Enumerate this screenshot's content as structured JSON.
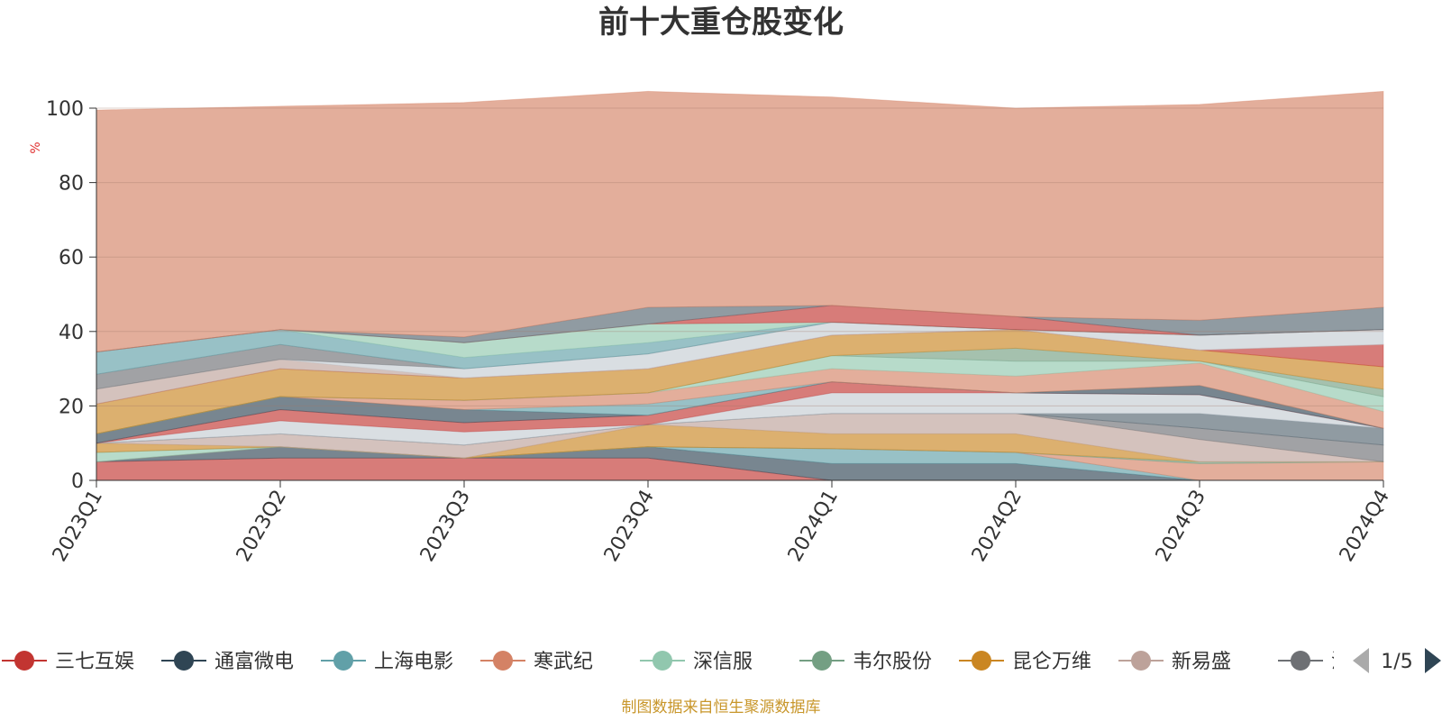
{
  "chart_data": {
    "type": "area",
    "title": "前十大重仓股变化",
    "ylabel": "%",
    "ylim": [
      0,
      100
    ],
    "yticks": [
      0,
      20,
      40,
      60,
      80,
      100
    ],
    "categories": [
      "2023Q1",
      "2023Q2",
      "2023Q3",
      "2023Q4",
      "2024Q1",
      "2024Q2",
      "2024Q3",
      "2024Q4"
    ],
    "stacked": true,
    "grid": true,
    "legend_position": "bottom",
    "legend_page": "1/5",
    "series": [
      {
        "name": "三七互娱",
        "color": "#c23531",
        "values": [
          5,
          6,
          6,
          6,
          0,
          0,
          0,
          0
        ]
      },
      {
        "name": "通富微电",
        "color": "#2f4554",
        "values": [
          0,
          3,
          0,
          3,
          4.5,
          4.5,
          0,
          0
        ]
      },
      {
        "name": "上海电影",
        "color": "#61a0a8",
        "values": [
          0,
          0,
          0,
          0,
          4,
          3,
          0,
          0
        ]
      },
      {
        "name": "寒武纪",
        "color": "#d48265",
        "values": [
          0,
          0,
          0,
          0,
          0,
          0,
          4.5,
          5
        ]
      },
      {
        "name": "深信服",
        "color": "#91c7ae",
        "values": [
          2.5,
          0,
          0,
          0,
          0,
          0,
          0,
          0
        ]
      },
      {
        "name": "韦尔股份",
        "color": "#749f83",
        "values": [
          0,
          0,
          0,
          0,
          0,
          0,
          0.5,
          0
        ]
      },
      {
        "name": "昆仑万维",
        "color": "#ca8622",
        "values": [
          2.5,
          0,
          0,
          6,
          4,
          5,
          0,
          0
        ]
      },
      {
        "name": "新易盛",
        "color": "#bda29a",
        "values": [
          0,
          3.5,
          3.5,
          0,
          5.5,
          5.5,
          6,
          0
        ]
      },
      {
        "name": "沪电股份",
        "color": "#6e7074",
        "values": [
          0,
          0,
          0,
          0,
          0,
          0,
          3,
          4.5
        ]
      },
      {
        "name": "",
        "color": "#546570",
        "values": [
          0,
          0,
          0,
          0,
          0,
          0,
          4,
          4.5
        ]
      },
      {
        "name": "",
        "color": "#c4ccd3",
        "values": [
          0,
          3.5,
          3.5,
          0,
          5.5,
          5.5,
          5,
          0
        ]
      },
      {
        "name": "",
        "color": "#c23531",
        "values": [
          0,
          3,
          2.5,
          2.5,
          3,
          0,
          0,
          0
        ]
      },
      {
        "name": "",
        "color": "#2f4554",
        "values": [
          2.5,
          3.5,
          3.5,
          0,
          0,
          0,
          2.5,
          0
        ]
      },
      {
        "name": "",
        "color": "#61a0a8",
        "values": [
          0,
          0,
          0,
          3,
          0,
          0,
          0,
          0
        ]
      },
      {
        "name": "",
        "color": "#d48265",
        "values": [
          0,
          0,
          2.5,
          3,
          3.5,
          4.5,
          6,
          4.5
        ]
      },
      {
        "name": "",
        "color": "#91c7ae",
        "values": [
          0,
          0,
          0,
          0,
          3.5,
          4,
          0.5,
          4
        ]
      },
      {
        "name": "",
        "color": "#749f83",
        "values": [
          0,
          0,
          0,
          0,
          0,
          3.5,
          0,
          2
        ]
      },
      {
        "name": "",
        "color": "#ca8622",
        "values": [
          8,
          7.5,
          6,
          6.5,
          5.5,
          5,
          3,
          6
        ]
      },
      {
        "name": "",
        "color": "#c23531",
        "values": [
          0,
          0,
          0,
          0,
          0,
          0,
          0,
          6
        ]
      },
      {
        "name": "",
        "color": "#bda29a",
        "values": [
          4,
          2.5,
          0,
          0,
          0,
          0,
          0,
          0
        ]
      },
      {
        "name": "",
        "color": "#c4ccd3",
        "values": [
          0,
          0,
          2.5,
          4,
          3.5,
          0,
          4,
          4
        ]
      },
      {
        "name": "",
        "color": "#6e7074",
        "values": [
          4,
          4,
          0,
          0,
          0,
          0,
          0,
          0
        ]
      },
      {
        "name": "",
        "color": "#61a0a8",
        "values": [
          6,
          4,
          3,
          3,
          0,
          0,
          0,
          0
        ]
      },
      {
        "name": "",
        "color": "#91c7ae",
        "values": [
          0,
          0,
          4,
          5,
          0,
          0,
          0,
          0
        ]
      },
      {
        "name": "",
        "color": "#c23531",
        "values": [
          0,
          0,
          0,
          0,
          4.5,
          3.5,
          0,
          0
        ]
      },
      {
        "name": "",
        "color": "#546570",
        "values": [
          0,
          0,
          1.5,
          4.5,
          0,
          0,
          4,
          6
        ]
      },
      {
        "name": "",
        "color": "#d48265",
        "values": [
          65,
          60,
          63,
          58,
          56,
          56,
          58,
          58
        ]
      }
    ]
  },
  "source_text": "制图数据来自恒生聚源数据库"
}
